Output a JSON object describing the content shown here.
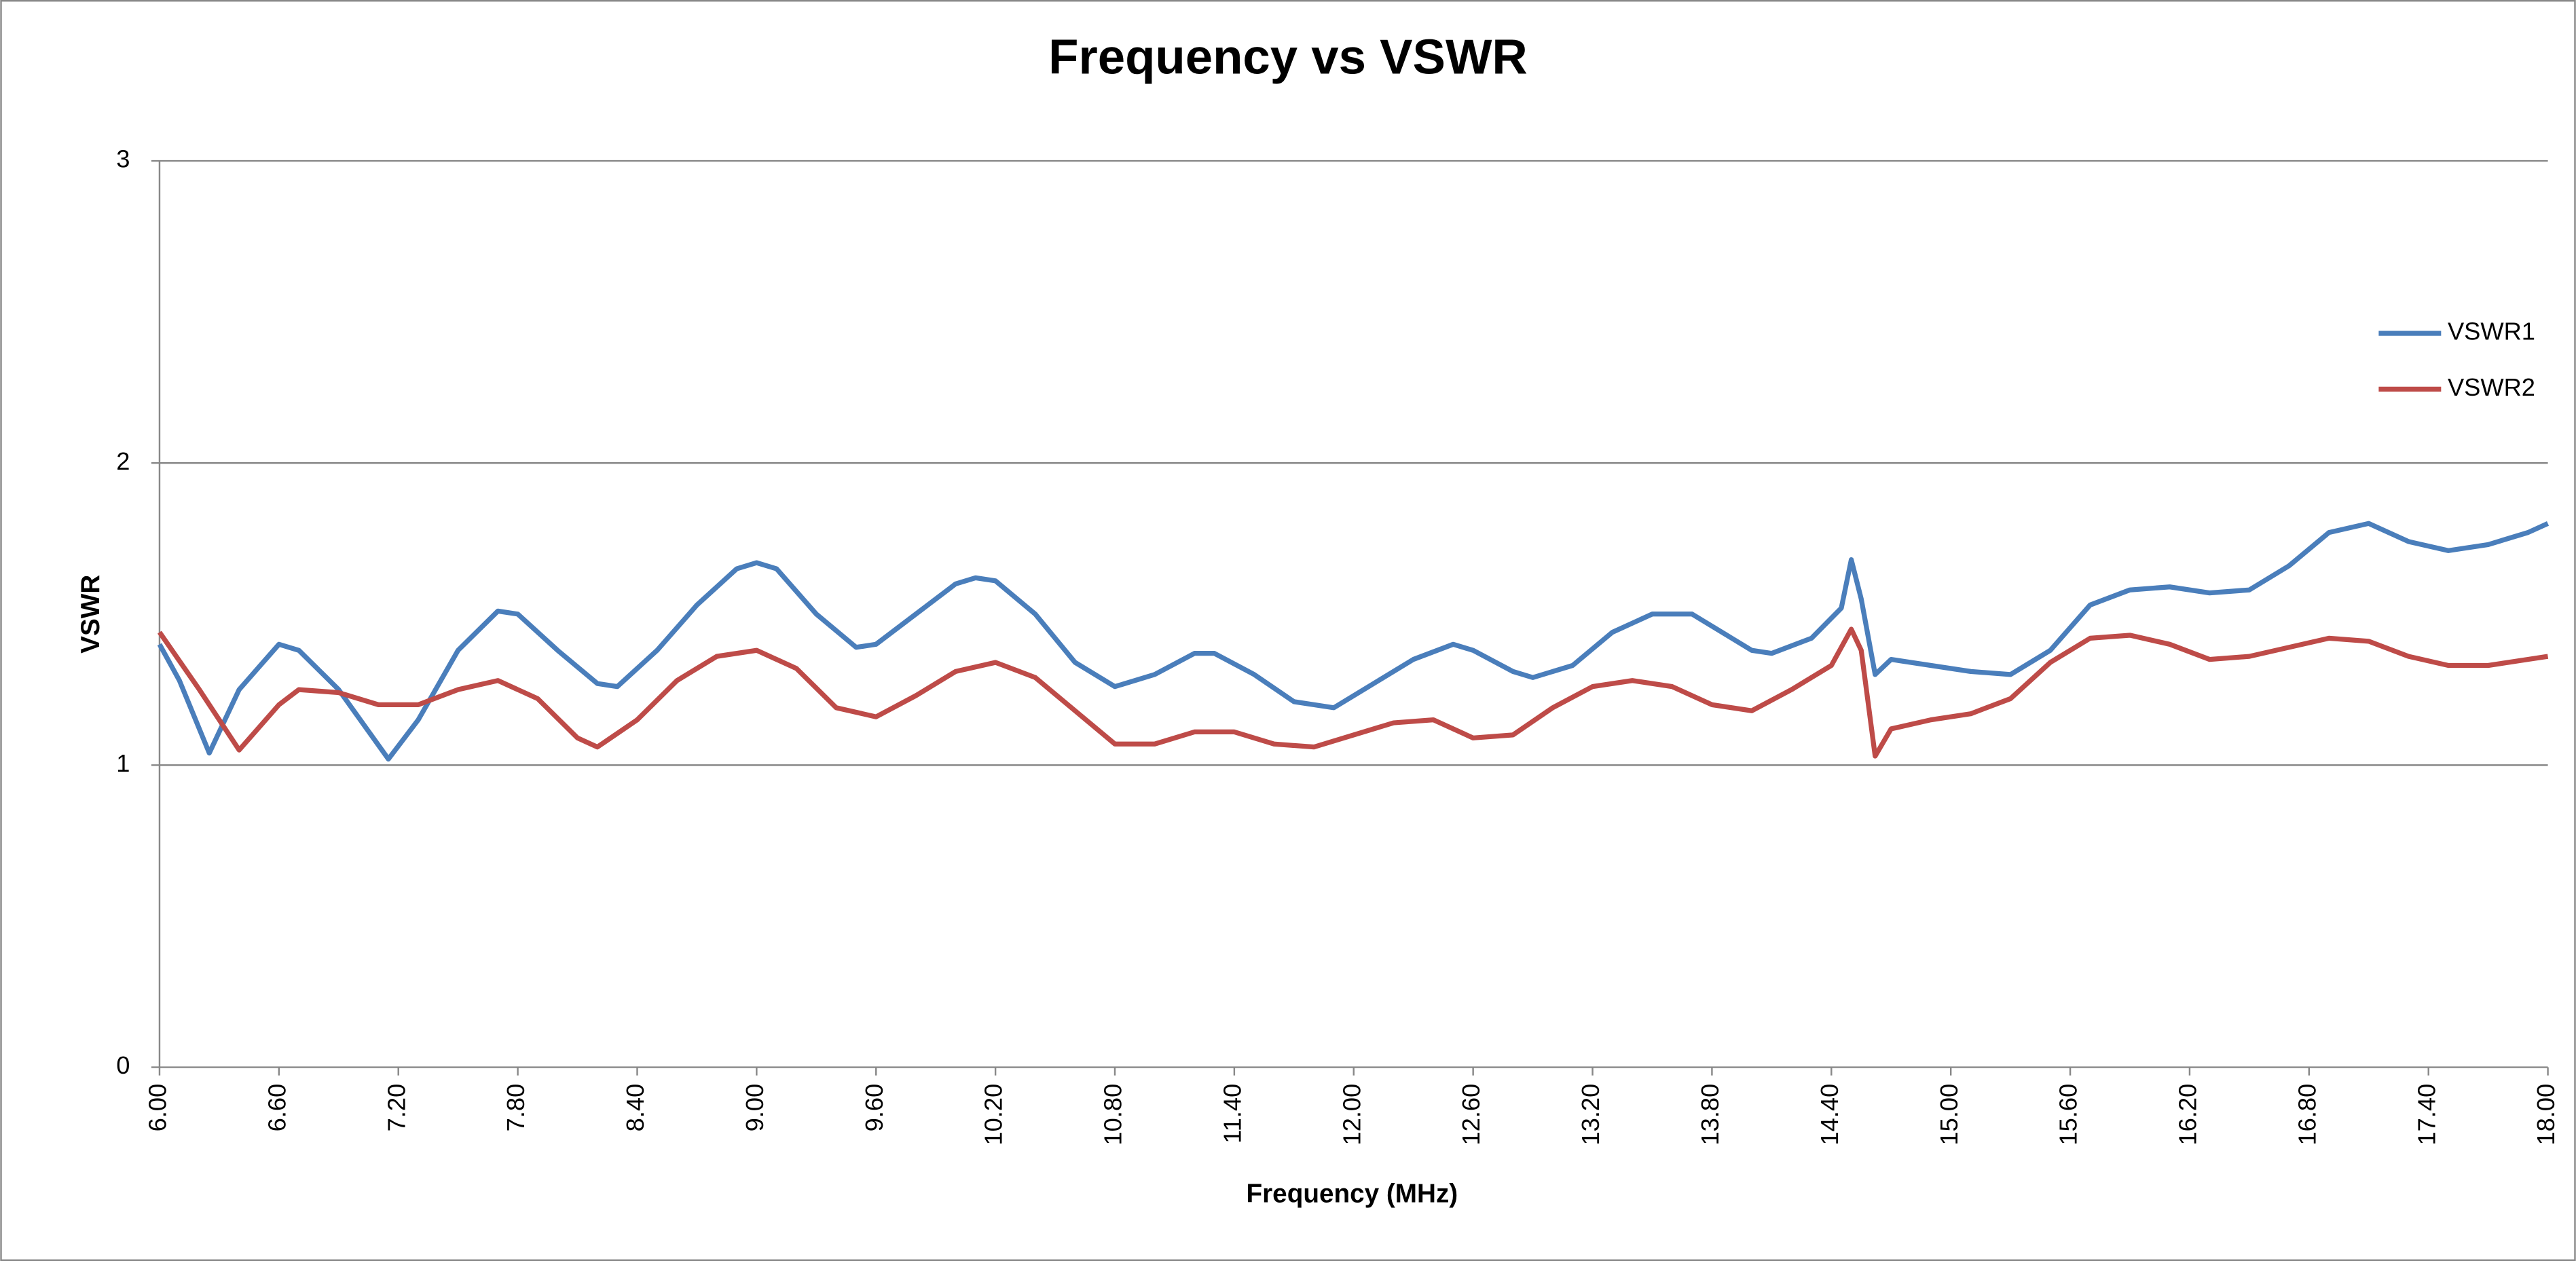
{
  "chart_data": {
    "type": "line",
    "title": "Frequency vs VSWR",
    "x_label": "Frequency (MHz)",
    "y_label": "VSWR",
    "xlim": [
      6,
      18
    ],
    "ylim": [
      0,
      3
    ],
    "xticks": [
      {
        "value": 6,
        "label": "6.00"
      },
      {
        "value": 6.6,
        "label": "6.60"
      },
      {
        "value": 7.2,
        "label": "7.20"
      },
      {
        "value": 7.8,
        "label": "7.80"
      },
      {
        "value": 8.4,
        "label": "8.40"
      },
      {
        "value": 9,
        "label": "9.00"
      },
      {
        "value": 9.6,
        "label": "9.60"
      },
      {
        "value": 10.2,
        "label": "10.20"
      },
      {
        "value": 10.8,
        "label": "10.80"
      },
      {
        "value": 11.4,
        "label": "11.40"
      },
      {
        "value": 12,
        "label": "12.00"
      },
      {
        "value": 12.6,
        "label": "12.60"
      },
      {
        "value": 13.2,
        "label": "13.20"
      },
      {
        "value": 13.8,
        "label": "13.80"
      },
      {
        "value": 14.4,
        "label": "14.40"
      },
      {
        "value": 15,
        "label": "15.00"
      },
      {
        "value": 15.6,
        "label": "15.60"
      },
      {
        "value": 16.2,
        "label": "16.20"
      },
      {
        "value": 16.8,
        "label": "16.80"
      },
      {
        "value": 17.4,
        "label": "17.40"
      },
      {
        "value": 18,
        "label": "18.00"
      }
    ],
    "yticks": [
      0,
      1,
      2,
      3
    ],
    "grid": true,
    "legend": "right",
    "series": [
      {
        "name": "VSWR1",
        "color": "#4a7ebb",
        "x": [
          6.0,
          6.1,
          6.25,
          6.4,
          6.6,
          6.7,
          6.9,
          7.15,
          7.3,
          7.5,
          7.7,
          7.8,
          8.0,
          8.2,
          8.3,
          8.5,
          8.7,
          8.9,
          9.0,
          9.1,
          9.3,
          9.5,
          9.6,
          9.8,
          10.0,
          10.1,
          10.2,
          10.4,
          10.6,
          10.8,
          11.0,
          11.2,
          11.3,
          11.5,
          11.7,
          11.9,
          12.1,
          12.3,
          12.5,
          12.6,
          12.8,
          12.9,
          13.1,
          13.3,
          13.5,
          13.7,
          13.9,
          14.0,
          14.1,
          14.3,
          14.45,
          14.5,
          14.55,
          14.62,
          14.7,
          14.9,
          15.1,
          15.3,
          15.5,
          15.7,
          15.9,
          16.1,
          16.3,
          16.5,
          16.7,
          16.9,
          17.1,
          17.3,
          17.5,
          17.7,
          17.9,
          18.0
        ],
        "values": [
          1.4,
          1.28,
          1.04,
          1.25,
          1.4,
          1.38,
          1.25,
          1.02,
          1.15,
          1.38,
          1.51,
          1.5,
          1.38,
          1.27,
          1.26,
          1.38,
          1.53,
          1.65,
          1.67,
          1.65,
          1.5,
          1.39,
          1.4,
          1.5,
          1.6,
          1.62,
          1.61,
          1.5,
          1.34,
          1.26,
          1.3,
          1.37,
          1.37,
          1.3,
          1.21,
          1.19,
          1.27,
          1.35,
          1.4,
          1.38,
          1.31,
          1.29,
          1.33,
          1.44,
          1.5,
          1.5,
          1.42,
          1.38,
          1.37,
          1.42,
          1.52,
          1.68,
          1.55,
          1.3,
          1.35,
          1.33,
          1.31,
          1.3,
          1.38,
          1.53,
          1.58,
          1.59,
          1.57,
          1.58,
          1.66,
          1.77,
          1.8,
          1.74,
          1.71,
          1.73,
          1.77,
          1.8
        ]
      },
      {
        "name": "VSWR2",
        "color": "#be4b48",
        "x": [
          6.0,
          6.2,
          6.4,
          6.6,
          6.7,
          6.9,
          7.1,
          7.3,
          7.5,
          7.7,
          7.9,
          8.1,
          8.2,
          8.4,
          8.6,
          8.8,
          9.0,
          9.2,
          9.4,
          9.6,
          9.8,
          10.0,
          10.2,
          10.4,
          10.6,
          10.8,
          11.0,
          11.2,
          11.4,
          11.6,
          11.8,
          12.0,
          12.2,
          12.4,
          12.6,
          12.8,
          13.0,
          13.2,
          13.4,
          13.6,
          13.8,
          14.0,
          14.2,
          14.4,
          14.5,
          14.55,
          14.62,
          14.7,
          14.9,
          15.1,
          15.3,
          15.5,
          15.7,
          15.9,
          16.1,
          16.3,
          16.5,
          16.7,
          16.9,
          17.1,
          17.3,
          17.5,
          17.7,
          17.9,
          18.0
        ],
        "values": [
          1.44,
          1.25,
          1.05,
          1.2,
          1.25,
          1.24,
          1.2,
          1.2,
          1.25,
          1.28,
          1.22,
          1.09,
          1.06,
          1.15,
          1.28,
          1.36,
          1.38,
          1.32,
          1.19,
          1.16,
          1.23,
          1.31,
          1.34,
          1.29,
          1.18,
          1.07,
          1.07,
          1.11,
          1.11,
          1.07,
          1.06,
          1.1,
          1.14,
          1.15,
          1.09,
          1.1,
          1.19,
          1.26,
          1.28,
          1.26,
          1.2,
          1.18,
          1.25,
          1.33,
          1.45,
          1.38,
          1.03,
          1.12,
          1.15,
          1.17,
          1.22,
          1.34,
          1.42,
          1.43,
          1.4,
          1.35,
          1.36,
          1.39,
          1.42,
          1.41,
          1.36,
          1.33,
          1.33,
          1.35,
          1.36
        ]
      }
    ]
  }
}
